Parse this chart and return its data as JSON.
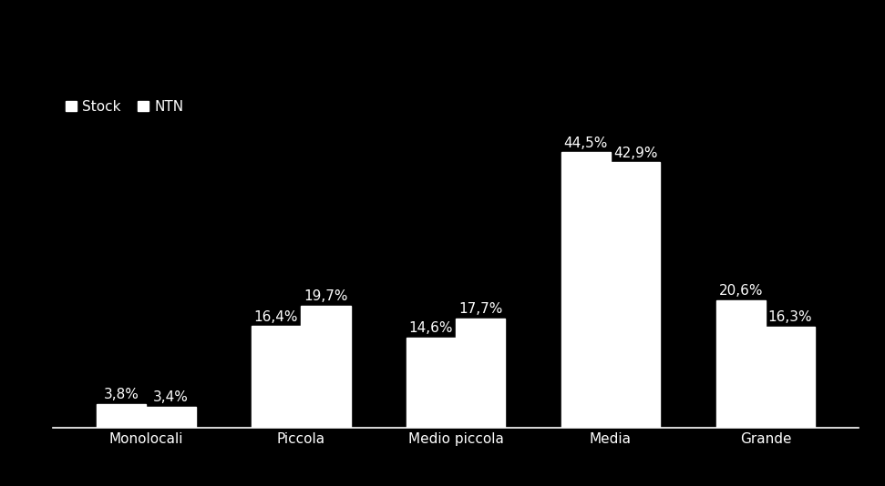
{
  "categories": [
    "Monolocali",
    "Piccola",
    "Medio piccola",
    "Media",
    "Grande"
  ],
  "stock_values": [
    3.8,
    16.4,
    14.6,
    44.5,
    20.6
  ],
  "ntn_values": [
    3.4,
    19.7,
    17.7,
    42.9,
    16.3
  ],
  "stock_labels": [
    "3,8%",
    "16,4%",
    "14,6%",
    "44,5%",
    "20,6%"
  ],
  "ntn_labels": [
    "3,4%",
    "19,7%",
    "17,7%",
    "42,9%",
    "16,3%"
  ],
  "bar_color": "#ffffff",
  "background_color": "#000000",
  "text_color": "#ffffff",
  "bar_width": 0.32,
  "ylim": [
    0,
    55
  ],
  "legend_stock": "Stock",
  "legend_ntn": "NTN",
  "label_fontsize": 11,
  "tick_fontsize": 11,
  "legend_fontsize": 11
}
